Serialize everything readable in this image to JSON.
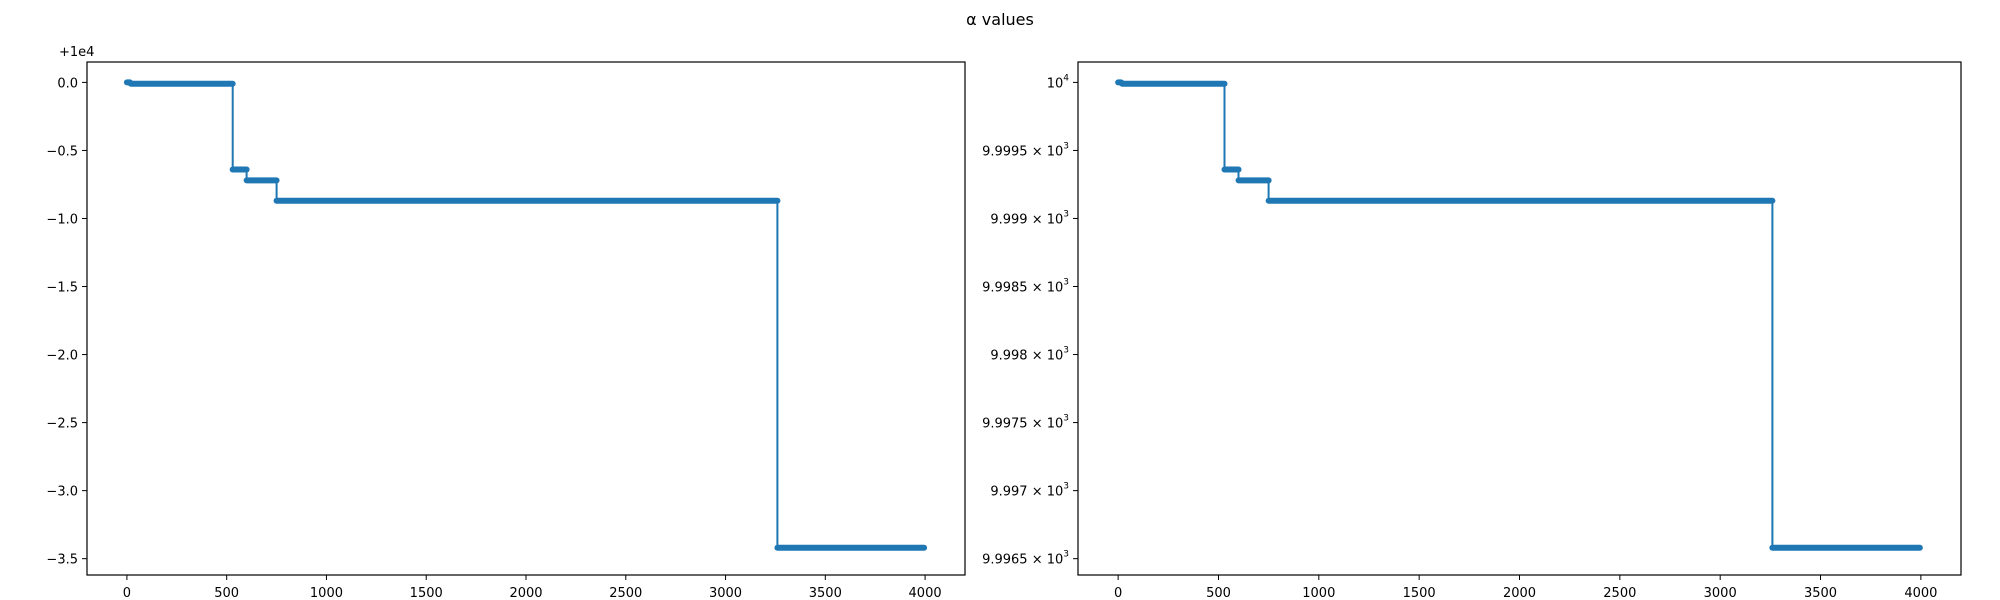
{
  "figure": {
    "suptitle": "α values"
  },
  "colors": {
    "series": "#1f77b4",
    "axes": "#000000",
    "background": "#ffffff"
  },
  "chart_data": [
    {
      "type": "line",
      "offset_text": "+1e4",
      "xlim": [
        -200,
        4200
      ],
      "ylim": [
        -3.62,
        0.15
      ],
      "xticks": [
        0,
        500,
        1000,
        1500,
        2000,
        2500,
        3000,
        3500,
        4000
      ],
      "xtick_labels": [
        "0",
        "500",
        "1000",
        "1500",
        "2000",
        "2500",
        "3000",
        "3500",
        "4000"
      ],
      "yticks": [
        0.0,
        -0.5,
        -1.0,
        -1.5,
        -2.0,
        -2.5,
        -3.0,
        -3.5
      ],
      "ytick_labels": [
        "0.0",
        "−0.5",
        "−1.0",
        "−1.5",
        "−2.0",
        "−2.5",
        "−3.0",
        "−3.5"
      ],
      "grid": false,
      "segments": [
        {
          "x": [
            0,
            15
          ],
          "y": [
            0.0,
            0.0
          ]
        },
        {
          "x": [
            20,
            530
          ],
          "y": [
            -0.01,
            -0.01
          ]
        },
        {
          "x": [
            530,
            600
          ],
          "y": [
            -0.64,
            -0.64
          ]
        },
        {
          "x": [
            600,
            750
          ],
          "y": [
            -0.72,
            -0.72
          ]
        },
        {
          "x": [
            750,
            3260
          ],
          "y": [
            -0.87,
            -0.87
          ]
        },
        {
          "x": [
            3260,
            3995
          ],
          "y": [
            -3.42,
            -3.42
          ]
        }
      ]
    },
    {
      "type": "line",
      "yscale": "log",
      "xlim": [
        -200,
        4200
      ],
      "ylim": [
        9996.38,
        10000.15
      ],
      "xticks": [
        0,
        500,
        1000,
        1500,
        2000,
        2500,
        3000,
        3500,
        4000
      ],
      "xtick_labels": [
        "0",
        "500",
        "1000",
        "1500",
        "2000",
        "2500",
        "3000",
        "3500",
        "4000"
      ],
      "yticks": [
        10000,
        9999.5,
        9999.0,
        9998.5,
        9998.0,
        9997.5,
        9997.0,
        9996.5
      ],
      "ytick_labels": [
        {
          "base": "10",
          "exp": "4"
        },
        {
          "base": "9.9995 × 10",
          "exp": "3"
        },
        {
          "base": "9.999 × 10",
          "exp": "3"
        },
        {
          "base": "9.9985 × 10",
          "exp": "3"
        },
        {
          "base": "9.998 × 10",
          "exp": "3"
        },
        {
          "base": "9.9975 × 10",
          "exp": "3"
        },
        {
          "base": "9.997 × 10",
          "exp": "3"
        },
        {
          "base": "9.9965 × 10",
          "exp": "3"
        }
      ],
      "grid": false,
      "segments": [
        {
          "x": [
            0,
            15
          ],
          "y": [
            10000.0,
            10000.0
          ]
        },
        {
          "x": [
            20,
            530
          ],
          "y": [
            9999.99,
            9999.99
          ]
        },
        {
          "x": [
            530,
            600
          ],
          "y": [
            9999.36,
            9999.36
          ]
        },
        {
          "x": [
            600,
            750
          ],
          "y": [
            9999.28,
            9999.28
          ]
        },
        {
          "x": [
            750,
            3260
          ],
          "y": [
            9999.13,
            9999.13
          ]
        },
        {
          "x": [
            3260,
            3995
          ],
          "y": [
            9996.58,
            9996.58
          ]
        }
      ]
    }
  ]
}
